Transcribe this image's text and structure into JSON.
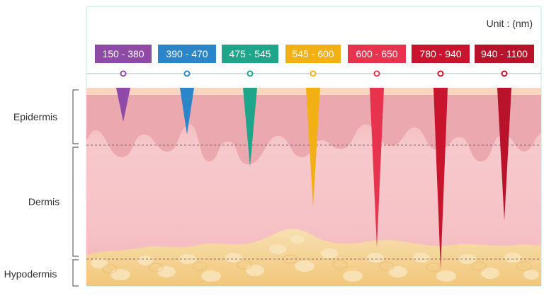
{
  "unit_label": "Unit : (nm)",
  "layers": {
    "epidermis": "Epidermis",
    "dermis": "Dermis",
    "hypodermis": "Hypodermis"
  },
  "wavelengths": [
    {
      "label": "150 - 380",
      "color": "#8e4aa6"
    },
    {
      "label": "390 - 470",
      "color": "#2a86c8"
    },
    {
      "label": "475 - 545",
      "color": "#1ea58a"
    },
    {
      "label": "545 - 600",
      "color": "#f3b014"
    },
    {
      "label": "600 - 650",
      "color": "#e8334e"
    },
    {
      "label": "780 - 940",
      "color": "#c8142c"
    },
    {
      "label": "940 - 1100",
      "color": "#b8132b"
    }
  ]
}
